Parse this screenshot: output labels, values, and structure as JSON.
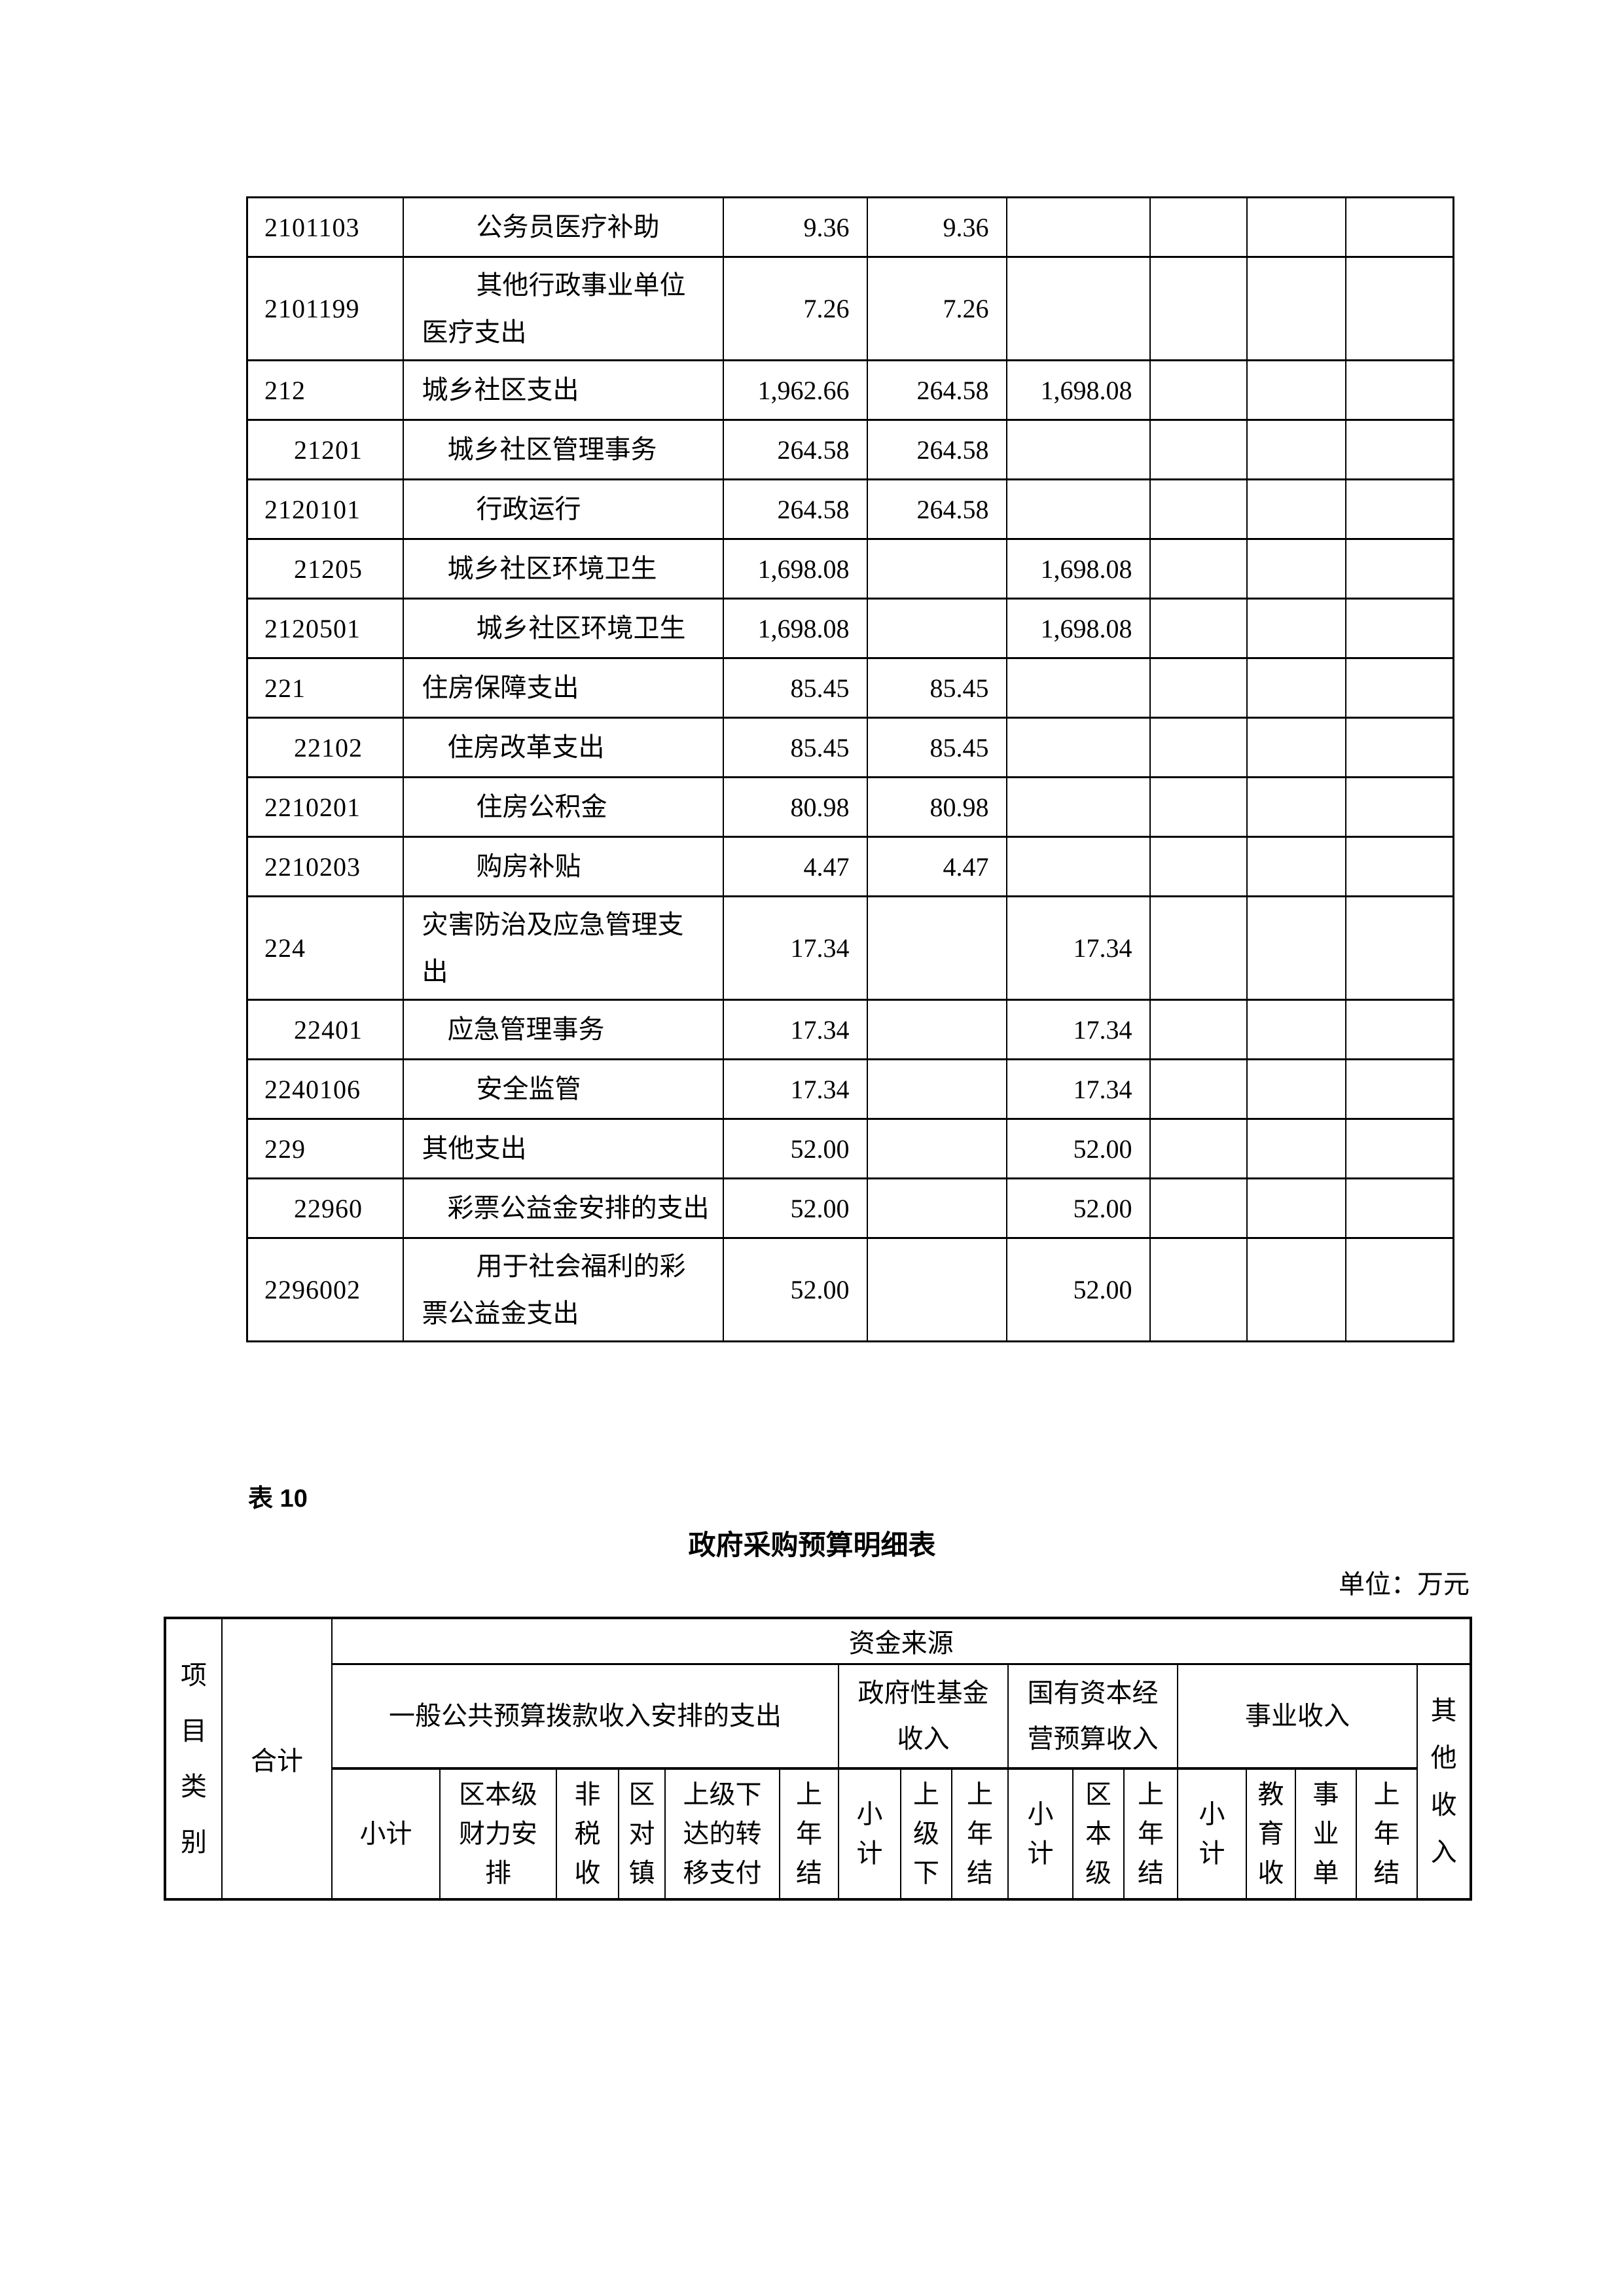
{
  "page": {
    "table_label": "表 10",
    "table_title": "政府采购预算明细表",
    "unit_note": "单位：万元"
  },
  "budget_table": {
    "rows": [
      {
        "code": "2101103",
        "code_indent": 0,
        "name": "公务员医疗补助",
        "name_level": 2,
        "tall": false,
        "amounts": [
          "9.36",
          "9.36",
          "",
          "",
          "",
          ""
        ]
      },
      {
        "code": "2101199",
        "code_indent": 0,
        "name": "其他行政事业单位\n医疗支出",
        "name_level": 2,
        "tall": true,
        "amounts": [
          "7.26",
          "7.26",
          "",
          "",
          "",
          ""
        ]
      },
      {
        "code": "212",
        "code_indent": 0,
        "name": "城乡社区支出",
        "name_level": 0,
        "tall": false,
        "amounts": [
          "1,962.66",
          "264.58",
          "1,698.08",
          "",
          "",
          ""
        ]
      },
      {
        "code": "21201",
        "code_indent": 1,
        "name": "城乡社区管理事务",
        "name_level": 1,
        "tall": false,
        "amounts": [
          "264.58",
          "264.58",
          "",
          "",
          "",
          ""
        ]
      },
      {
        "code": "2120101",
        "code_indent": 0,
        "name": "行政运行",
        "name_level": 2,
        "tall": false,
        "amounts": [
          "264.58",
          "264.58",
          "",
          "",
          "",
          ""
        ]
      },
      {
        "code": "21205",
        "code_indent": 1,
        "name": "城乡社区环境卫生",
        "name_level": 1,
        "tall": false,
        "amounts": [
          "1,698.08",
          "",
          "1,698.08",
          "",
          "",
          ""
        ]
      },
      {
        "code": "2120501",
        "code_indent": 0,
        "name": "城乡社区环境卫生",
        "name_level": 2,
        "tall": false,
        "amounts": [
          "1,698.08",
          "",
          "1,698.08",
          "",
          "",
          ""
        ]
      },
      {
        "code": "221",
        "code_indent": 0,
        "name": "住房保障支出",
        "name_level": 0,
        "tall": false,
        "amounts": [
          "85.45",
          "85.45",
          "",
          "",
          "",
          ""
        ]
      },
      {
        "code": "22102",
        "code_indent": 1,
        "name": "住房改革支出",
        "name_level": 1,
        "tall": false,
        "amounts": [
          "85.45",
          "85.45",
          "",
          "",
          "",
          ""
        ]
      },
      {
        "code": "2210201",
        "code_indent": 0,
        "name": "住房公积金",
        "name_level": 2,
        "tall": false,
        "amounts": [
          "80.98",
          "80.98",
          "",
          "",
          "",
          ""
        ]
      },
      {
        "code": "2210203",
        "code_indent": 0,
        "name": "购房补贴",
        "name_level": 2,
        "tall": false,
        "amounts": [
          "4.47",
          "4.47",
          "",
          "",
          "",
          ""
        ]
      },
      {
        "code": "224",
        "code_indent": 0,
        "name": "灾害防治及应急管理支\n出",
        "name_level": 0,
        "tall": true,
        "amounts": [
          "17.34",
          "",
          "17.34",
          "",
          "",
          ""
        ]
      },
      {
        "code": "22401",
        "code_indent": 1,
        "name": "应急管理事务",
        "name_level": 1,
        "tall": false,
        "amounts": [
          "17.34",
          "",
          "17.34",
          "",
          "",
          ""
        ]
      },
      {
        "code": "2240106",
        "code_indent": 0,
        "name": "安全监管",
        "name_level": 2,
        "tall": false,
        "amounts": [
          "17.34",
          "",
          "17.34",
          "",
          "",
          ""
        ]
      },
      {
        "code": "229",
        "code_indent": 0,
        "name": "其他支出",
        "name_level": 0,
        "tall": false,
        "amounts": [
          "52.00",
          "",
          "52.00",
          "",
          "",
          ""
        ]
      },
      {
        "code": "22960",
        "code_indent": 1,
        "name": "彩票公益金安排的支出",
        "name_level": 1,
        "tall": false,
        "amounts": [
          "52.00",
          "",
          "52.00",
          "",
          "",
          ""
        ]
      },
      {
        "code": "2296002",
        "code_indent": 0,
        "name": "用于社会福利的彩\n票公益金支出",
        "name_level": 2,
        "tall": true,
        "amounts": [
          "52.00",
          "",
          "52.00",
          "",
          "",
          ""
        ]
      }
    ]
  },
  "procurement_table": {
    "source_label": "资金来源",
    "project_col": "项\n目\n类\n别",
    "total_col": "合计",
    "groups": [
      {
        "label": "一般公共预算拨款收入安排的支出",
        "span": 6
      },
      {
        "label": "政府性基金\n收入",
        "span": 3
      },
      {
        "label": "国有资本经\n营预算收入",
        "span": 3
      },
      {
        "label": "事业收入",
        "span": 4
      }
    ],
    "other_col": "其\n他\n收\n入",
    "subcols": [
      "小计",
      "区本级\n财力安\n排",
      "非\n税\n收",
      "区\n对\n镇",
      "上级下\n达的转\n移支付",
      "上\n年\n结",
      "小\n计",
      "上\n级\n下",
      "上\n年\n结",
      "小\n计",
      "区\n本\n级",
      "上\n年\n结",
      "小\n计",
      "教\n育\n收",
      "事\n业\n单",
      "上\n年\n结"
    ]
  }
}
